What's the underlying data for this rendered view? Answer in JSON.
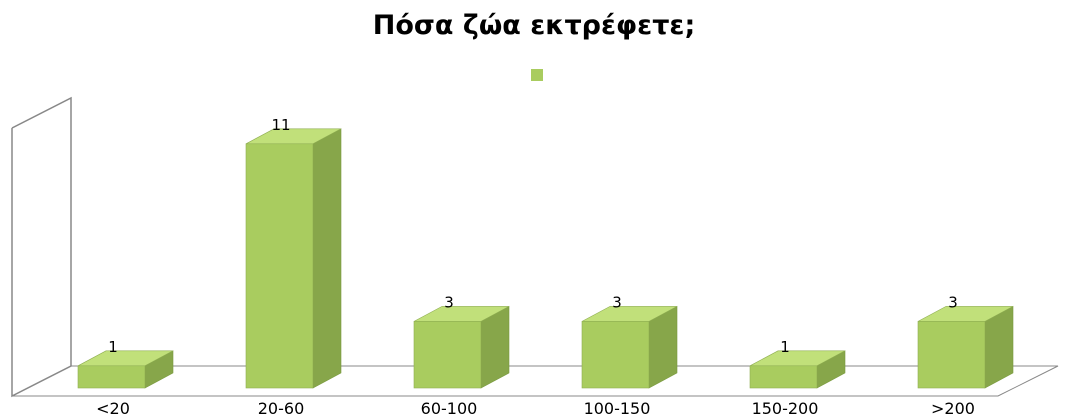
{
  "chart_data": {
    "type": "bar",
    "title": "Πόσα ζώα εκτρέφετε;",
    "categories": [
      "<20",
      "20-60",
      "60-100",
      "100-150",
      "150-200",
      ">200"
    ],
    "series": [
      {
        "values": [
          1,
          11,
          3,
          3,
          1,
          3
        ]
      }
    ],
    "ylim": [
      0,
      12
    ],
    "grid": false,
    "legend_position": "top",
    "data_labels": true,
    "three_d": true,
    "colors": {
      "bar_front": "#a9cc5f",
      "bar_side": "#87a64a",
      "bar_top": "#c1e07a",
      "legend_swatch": "#a9cc5f",
      "frame": "#888888"
    }
  }
}
